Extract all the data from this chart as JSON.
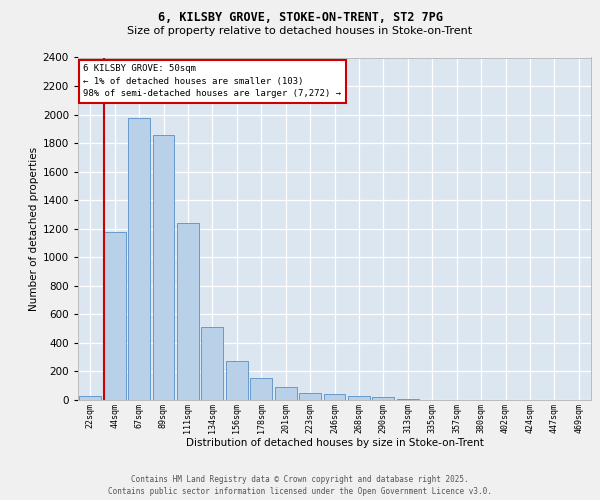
{
  "title1": "6, KILSBY GROVE, STOKE-ON-TRENT, ST2 7PG",
  "title2": "Size of property relative to detached houses in Stoke-on-Trent",
  "xlabel": "Distribution of detached houses by size in Stoke-on-Trent",
  "ylabel": "Number of detached properties",
  "categories": [
    "22sqm",
    "44sqm",
    "67sqm",
    "89sqm",
    "111sqm",
    "134sqm",
    "156sqm",
    "178sqm",
    "201sqm",
    "223sqm",
    "246sqm",
    "268sqm",
    "290sqm",
    "313sqm",
    "335sqm",
    "357sqm",
    "380sqm",
    "402sqm",
    "424sqm",
    "447sqm",
    "469sqm"
  ],
  "values": [
    30,
    1175,
    1975,
    1855,
    1240,
    515,
    275,
    155,
    90,
    50,
    45,
    30,
    20,
    10,
    0,
    0,
    0,
    0,
    0,
    0,
    0
  ],
  "bar_color": "#b8d0e8",
  "bar_edge_color": "#6699cc",
  "bg_color": "#dce6f0",
  "grid_color": "#ffffff",
  "vline_color": "#cc0000",
  "annotation_title": "6 KILSBY GROVE: 50sqm",
  "annotation_line1": "← 1% of detached houses are smaller (103)",
  "annotation_line2": "98% of semi-detached houses are larger (7,272) →",
  "ann_edge_color": "#cc0000",
  "ylim_max": 2400,
  "yticks": [
    0,
    200,
    400,
    600,
    800,
    1000,
    1200,
    1400,
    1600,
    1800,
    2000,
    2200,
    2400
  ],
  "footer1": "Contains HM Land Registry data © Crown copyright and database right 2025.",
  "footer2": "Contains public sector information licensed under the Open Government Licence v3.0.",
  "fig_bg": "#f0f0f0"
}
